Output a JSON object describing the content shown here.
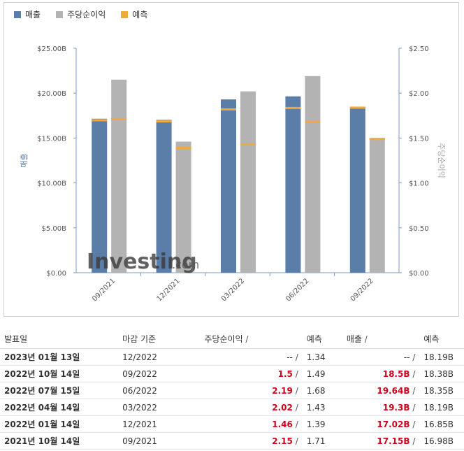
{
  "legend": [
    {
      "label": "매출",
      "color": "#5b7ea9"
    },
    {
      "label": "주당순이익",
      "color": "#b3b3b3"
    },
    {
      "label": "예측",
      "color": "#f2a93b"
    }
  ],
  "chart_data": {
    "type": "bar",
    "categories": [
      "09/2021",
      "12/2021",
      "03/2022",
      "06/2022",
      "09/2022"
    ],
    "series": [
      {
        "name": "매출",
        "axis": "left",
        "values": [
          17.15,
          17.02,
          19.3,
          19.64,
          18.5
        ],
        "forecast": [
          16.98,
          16.85,
          18.19,
          18.35,
          18.38
        ]
      },
      {
        "name": "주당순이익",
        "axis": "right",
        "values": [
          2.15,
          1.46,
          2.02,
          2.19,
          1.5
        ],
        "forecast": [
          1.71,
          1.39,
          1.43,
          1.68,
          1.49
        ]
      }
    ],
    "ylabel": "매출",
    "y2label": "주당순이익",
    "ylim": [
      0,
      25
    ],
    "y2lim": [
      0,
      2.5
    ],
    "yticks": [
      "$0.00",
      "$5.00B",
      "$10.00B",
      "$15.00B",
      "$20.00B",
      "$25.00B"
    ],
    "y2ticks": [
      "$0.00",
      "$0.50",
      "$1.00",
      "$1.50",
      "$2.00",
      "$2.50"
    ],
    "watermark": "Investing",
    "watermark_suffix": ".com",
    "colors": {
      "revenue": "#5b7ea9",
      "eps": "#b3b3b3",
      "forecast": "#f2a93b"
    }
  },
  "table": {
    "headers": {
      "date": "발표일",
      "period": "마감 기준",
      "eps": "주당순이익",
      "eps_forecast": "예측",
      "revenue": "매출",
      "revenue_forecast": "예측",
      "slash": "/"
    },
    "rows": [
      {
        "date": "2023년 01월 13일",
        "period": "12/2022",
        "eps": "--",
        "eps_forecast": "1.34",
        "revenue": "--",
        "revenue_forecast": "18.19B"
      },
      {
        "date": "2022년 10월 14일",
        "period": "09/2022",
        "eps": "1.5",
        "eps_forecast": "1.49",
        "revenue": "18.5B",
        "revenue_forecast": "18.38B"
      },
      {
        "date": "2022년 07월 15일",
        "period": "06/2022",
        "eps": "2.19",
        "eps_forecast": "1.68",
        "revenue": "19.64B",
        "revenue_forecast": "18.35B"
      },
      {
        "date": "2022년 04월 14일",
        "period": "03/2022",
        "eps": "2.02",
        "eps_forecast": "1.43",
        "revenue": "19.3B",
        "revenue_forecast": "18.19B"
      },
      {
        "date": "2022년 01월 14일",
        "period": "12/2021",
        "eps": "1.46",
        "eps_forecast": "1.39",
        "revenue": "17.02B",
        "revenue_forecast": "16.85B"
      },
      {
        "date": "2021년 10월 14일",
        "period": "09/2021",
        "eps": "2.15",
        "eps_forecast": "1.71",
        "revenue": "17.15B",
        "revenue_forecast": "16.98B"
      }
    ]
  }
}
